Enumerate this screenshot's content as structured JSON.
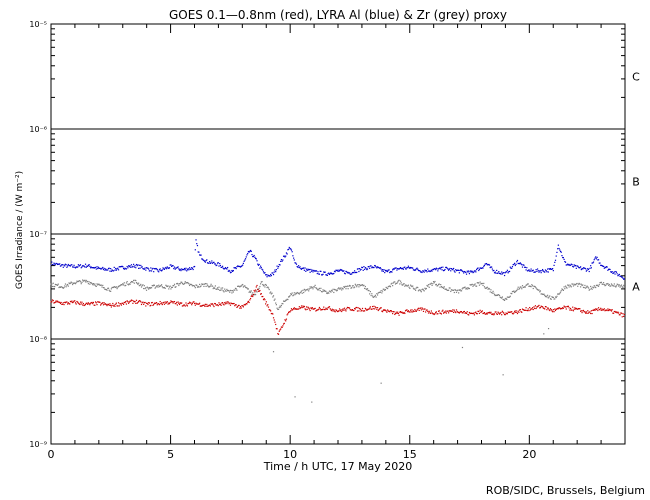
{
  "chart_data": {
    "type": "scatter",
    "title": "GOES 0.1—0.8nm (red), LYRA Al (blue) & Zr (grey) proxy",
    "xlabel": "Time / h UTC, 17 May 2020",
    "ylabel": "GOES Irradiance / (W m⁻²)",
    "credit": "ROB/SIDC, Brussels, Belgium",
    "xlim": [
      0,
      24
    ],
    "ylim_log10": [
      -9,
      -5
    ],
    "yscale": "log",
    "x_ticks": [
      {
        "value": 0,
        "label": "0"
      },
      {
        "value": 5,
        "label": "5"
      },
      {
        "value": 10,
        "label": "10"
      },
      {
        "value": 15,
        "label": "15"
      },
      {
        "value": 20,
        "label": "20"
      }
    ],
    "y_ticks": [
      {
        "value": -9,
        "label": "10⁻⁹"
      },
      {
        "value": -8,
        "label": "10⁻⁸"
      },
      {
        "value": -7,
        "label": "10⁻⁷"
      },
      {
        "value": -6,
        "label": "10⁻⁶"
      },
      {
        "value": -5,
        "label": "10⁻⁵"
      }
    ],
    "flare_class_lines": [
      -8,
      -7,
      -6
    ],
    "flare_classes": [
      {
        "label": "A",
        "value": -7.5
      },
      {
        "label": "B",
        "value": -6.5
      },
      {
        "label": "C",
        "value": -5.5
      }
    ],
    "series": [
      {
        "color": "#0000cc",
        "x": [
          0,
          0.5,
          1,
          1.5,
          2,
          2.5,
          3,
          3.5,
          4,
          4.5,
          5,
          5.5,
          6,
          6.05,
          6.2,
          6.5,
          7,
          7.5,
          8,
          8.3,
          8.5,
          8.7,
          9,
          9.3,
          9.5,
          9.8,
          10,
          10.2,
          10.5,
          11,
          11.5,
          12,
          12.5,
          13,
          13.5,
          14,
          14.5,
          15,
          15.5,
          16,
          16.5,
          17,
          17.5,
          18,
          18.2,
          18.5,
          19,
          19.5,
          19.8,
          20,
          20.5,
          21,
          21.2,
          21.5,
          22,
          22.5,
          22.8,
          23,
          23.5,
          24
        ],
        "y": [
          -7.28,
          -7.3,
          -7.31,
          -7.3,
          -7.33,
          -7.34,
          -7.32,
          -7.3,
          -7.33,
          -7.35,
          -7.31,
          -7.34,
          -7.32,
          -7.06,
          -7.2,
          -7.26,
          -7.29,
          -7.35,
          -7.3,
          -7.16,
          -7.22,
          -7.3,
          -7.4,
          -7.38,
          -7.3,
          -7.2,
          -7.12,
          -7.28,
          -7.33,
          -7.36,
          -7.38,
          -7.35,
          -7.37,
          -7.33,
          -7.31,
          -7.36,
          -7.33,
          -7.32,
          -7.35,
          -7.34,
          -7.33,
          -7.35,
          -7.37,
          -7.32,
          -7.28,
          -7.35,
          -7.38,
          -7.26,
          -7.32,
          -7.35,
          -7.35,
          -7.34,
          -7.1,
          -7.28,
          -7.32,
          -7.34,
          -7.22,
          -7.29,
          -7.36,
          -7.42
        ]
      },
      {
        "color": "#7f7f7f",
        "x": [
          0,
          0.5,
          1,
          1.5,
          2,
          2.5,
          3,
          3.5,
          4,
          4.5,
          5,
          5.5,
          6,
          6.5,
          7,
          7.5,
          8,
          8.5,
          8.8,
          9,
          9.3,
          9.5,
          9.7,
          10,
          10.5,
          11,
          11.5,
          12,
          12.5,
          13,
          13.5,
          14,
          14.5,
          15,
          15.5,
          16,
          16.5,
          17,
          17.5,
          18,
          18.5,
          19,
          19.5,
          20,
          20.5,
          21,
          21.5,
          22,
          22.5,
          23,
          23.5,
          24
        ],
        "y": [
          -7.48,
          -7.5,
          -7.46,
          -7.45,
          -7.49,
          -7.53,
          -7.48,
          -7.45,
          -7.52,
          -7.49,
          -7.51,
          -7.46,
          -7.5,
          -7.48,
          -7.52,
          -7.55,
          -7.49,
          -7.58,
          -7.46,
          -7.5,
          -7.6,
          -7.72,
          -7.66,
          -7.58,
          -7.55,
          -7.5,
          -7.56,
          -7.53,
          -7.5,
          -7.48,
          -7.6,
          -7.52,
          -7.45,
          -7.5,
          -7.54,
          -7.46,
          -7.52,
          -7.55,
          -7.5,
          -7.47,
          -7.56,
          -7.62,
          -7.52,
          -7.48,
          -7.56,
          -7.62,
          -7.5,
          -7.48,
          -7.52,
          -7.47,
          -7.49,
          -7.5
        ]
      },
      {
        "color": "#cc0000",
        "x": [
          0,
          0.5,
          1,
          1.5,
          2,
          2.5,
          3,
          3.5,
          4,
          4.5,
          5,
          5.5,
          6,
          6.5,
          7,
          7.5,
          8,
          8.3,
          8.6,
          8.8,
          9,
          9.3,
          9.5,
          10,
          10.5,
          11,
          11.5,
          12,
          12.5,
          13,
          13.5,
          14,
          14.5,
          15,
          15.5,
          16,
          16.5,
          17,
          17.5,
          18,
          18.5,
          19,
          19.5,
          20,
          20.5,
          21,
          21.5,
          22,
          22.5,
          23,
          23.5,
          24
        ],
        "y": [
          -7.64,
          -7.66,
          -7.65,
          -7.67,
          -7.66,
          -7.68,
          -7.66,
          -7.64,
          -7.67,
          -7.66,
          -7.65,
          -7.67,
          -7.66,
          -7.68,
          -7.67,
          -7.66,
          -7.7,
          -7.64,
          -7.5,
          -7.58,
          -7.66,
          -7.78,
          -7.96,
          -7.72,
          -7.7,
          -7.72,
          -7.7,
          -7.73,
          -7.71,
          -7.72,
          -7.7,
          -7.73,
          -7.76,
          -7.73,
          -7.72,
          -7.75,
          -7.74,
          -7.73,
          -7.76,
          -7.74,
          -7.76,
          -7.75,
          -7.74,
          -7.71,
          -7.69,
          -7.73,
          -7.7,
          -7.72,
          -7.75,
          -7.71,
          -7.74,
          -7.78
        ]
      }
    ],
    "sparse_points": {
      "color": "#7f7f7f",
      "x": [
        9.3,
        10.2,
        10.9,
        13.8,
        17.2,
        18.9,
        20.6,
        20.8
      ],
      "y": [
        -8.12,
        -8.55,
        -8.6,
        -8.42,
        -8.08,
        -8.34,
        -7.95,
        -7.9
      ]
    }
  }
}
